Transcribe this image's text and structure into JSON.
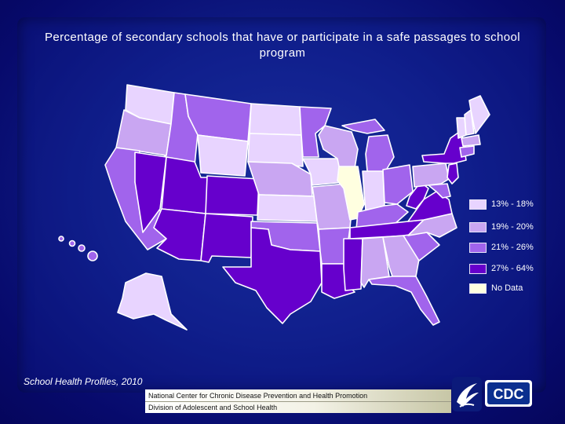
{
  "title": "Percentage of secondary schools that have or participate in a safe passages to school program",
  "legend": [
    {
      "label": "13% - 18%",
      "color": "#e8d4ff"
    },
    {
      "label": "19% - 20%",
      "color": "#c9a6f2"
    },
    {
      "label": "21% - 26%",
      "color": "#a164ec"
    },
    {
      "label": "27% - 64%",
      "color": "#6600cc"
    },
    {
      "label": "No Data",
      "color": "#ffffe0"
    }
  ],
  "source": "School Health Profiles, 2010",
  "footer": {
    "line1": "National Center for Chronic Disease Prevention and Health Promotion",
    "line2": "Division of Adolescent and School Health"
  },
  "logo": {
    "text": "CDC",
    "icon": "hhs-eagle-icon"
  },
  "colors": {
    "background": "#0f1c86",
    "state_border": "#ffffff",
    "no_data": "#ffffe0",
    "c1": "#e8d4ff",
    "c2": "#c9a6f2",
    "c3": "#a164ec",
    "c4": "#6600cc"
  }
}
